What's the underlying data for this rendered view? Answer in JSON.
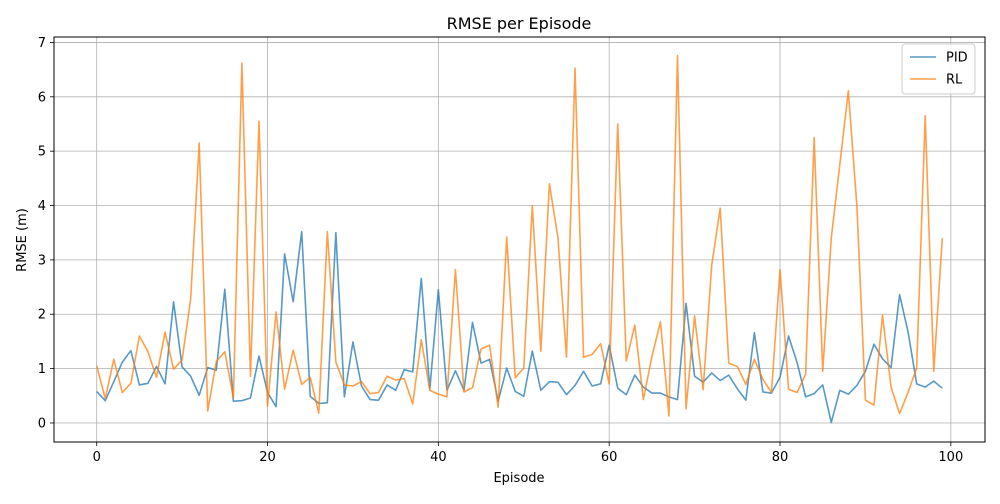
{
  "chart_data": {
    "type": "line",
    "title": "RMSE per Episode",
    "xlabel": "Episode",
    "ylabel": "RMSE (m)",
    "xlim": [
      -5,
      104
    ],
    "ylim": [
      -0.35,
      7.1
    ],
    "x_ticks": [
      0,
      20,
      40,
      60,
      80,
      100
    ],
    "y_ticks": [
      0,
      1,
      2,
      3,
      4,
      5,
      6,
      7
    ],
    "grid": true,
    "legend_position": "top-right",
    "x": [
      0,
      1,
      2,
      3,
      4,
      5,
      6,
      7,
      8,
      9,
      10,
      11,
      12,
      13,
      14,
      15,
      16,
      17,
      18,
      19,
      20,
      21,
      22,
      23,
      24,
      25,
      26,
      27,
      28,
      29,
      30,
      31,
      32,
      33,
      34,
      35,
      36,
      37,
      38,
      39,
      40,
      41,
      42,
      43,
      44,
      45,
      46,
      47,
      48,
      49,
      50,
      51,
      52,
      53,
      54,
      55,
      56,
      57,
      58,
      59,
      60,
      61,
      62,
      63,
      64,
      65,
      66,
      67,
      68,
      69,
      70,
      71,
      72,
      73,
      74,
      75,
      76,
      77,
      78,
      79,
      80,
      81,
      82,
      83,
      84,
      85,
      86,
      87,
      88,
      89,
      90,
      91,
      92,
      93,
      94,
      95,
      96,
      97,
      98,
      99
    ],
    "series": [
      {
        "name": "PID",
        "color": "#1f77b4",
        "values": [
          0.58,
          0.41,
          0.76,
          1.12,
          1.33,
          0.7,
          0.73,
          1.04,
          0.72,
          2.23,
          1.03,
          0.86,
          0.51,
          1.02,
          0.97,
          2.46,
          0.4,
          0.41,
          0.46,
          1.23,
          0.56,
          0.3,
          3.11,
          2.23,
          3.52,
          0.49,
          0.36,
          0.37,
          3.5,
          0.48,
          1.49,
          0.68,
          0.43,
          0.42,
          0.7,
          0.6,
          0.98,
          0.94,
          2.66,
          0.62,
          2.45,
          0.6,
          0.96,
          0.6,
          1.85,
          1.1,
          1.17,
          0.4,
          1.01,
          0.58,
          0.49,
          1.32,
          0.6,
          0.76,
          0.75,
          0.52,
          0.69,
          0.95,
          0.68,
          0.72,
          1.43,
          0.64,
          0.52,
          0.88,
          0.66,
          0.55,
          0.55,
          0.48,
          0.43,
          2.2,
          0.86,
          0.75,
          0.92,
          0.78,
          0.88,
          0.63,
          0.42,
          1.66,
          0.57,
          0.55,
          0.84,
          1.6,
          1.11,
          0.48,
          0.54,
          0.7,
          0.01,
          0.6,
          0.53,
          0.69,
          0.95,
          1.45,
          1.18,
          1.02,
          2.36,
          1.67,
          0.72,
          0.66,
          0.77,
          0.64
        ]
      },
      {
        "name": "RL",
        "color": "#ff7f0e",
        "values": [
          1.05,
          0.45,
          1.17,
          0.56,
          0.73,
          1.6,
          1.31,
          0.84,
          1.67,
          0.99,
          1.16,
          2.28,
          5.15,
          0.22,
          1.13,
          1.31,
          0.46,
          6.62,
          0.86,
          5.55,
          0.31,
          2.04,
          0.62,
          1.34,
          0.71,
          0.84,
          0.18,
          3.52,
          1.12,
          0.7,
          0.68,
          0.76,
          0.54,
          0.56,
          0.86,
          0.79,
          0.82,
          0.35,
          1.53,
          0.6,
          0.53,
          0.48,
          2.82,
          0.57,
          0.65,
          1.36,
          1.43,
          0.29,
          3.42,
          0.83,
          1.01,
          4.0,
          1.32,
          4.4,
          3.41,
          1.21,
          6.53,
          1.21,
          1.26,
          1.46,
          0.72,
          5.5,
          1.14,
          1.8,
          0.43,
          1.22,
          1.86,
          0.13,
          6.76,
          0.26,
          1.97,
          0.61,
          2.9,
          3.95,
          1.1,
          1.04,
          0.71,
          1.17,
          0.8,
          0.56,
          2.82,
          0.62,
          0.56,
          0.9,
          5.25,
          0.95,
          3.4,
          4.75,
          6.11,
          3.99,
          0.42,
          0.33,
          1.98,
          0.66,
          0.17,
          0.57,
          1.01,
          5.65,
          0.95,
          3.4
        ]
      }
    ]
  }
}
